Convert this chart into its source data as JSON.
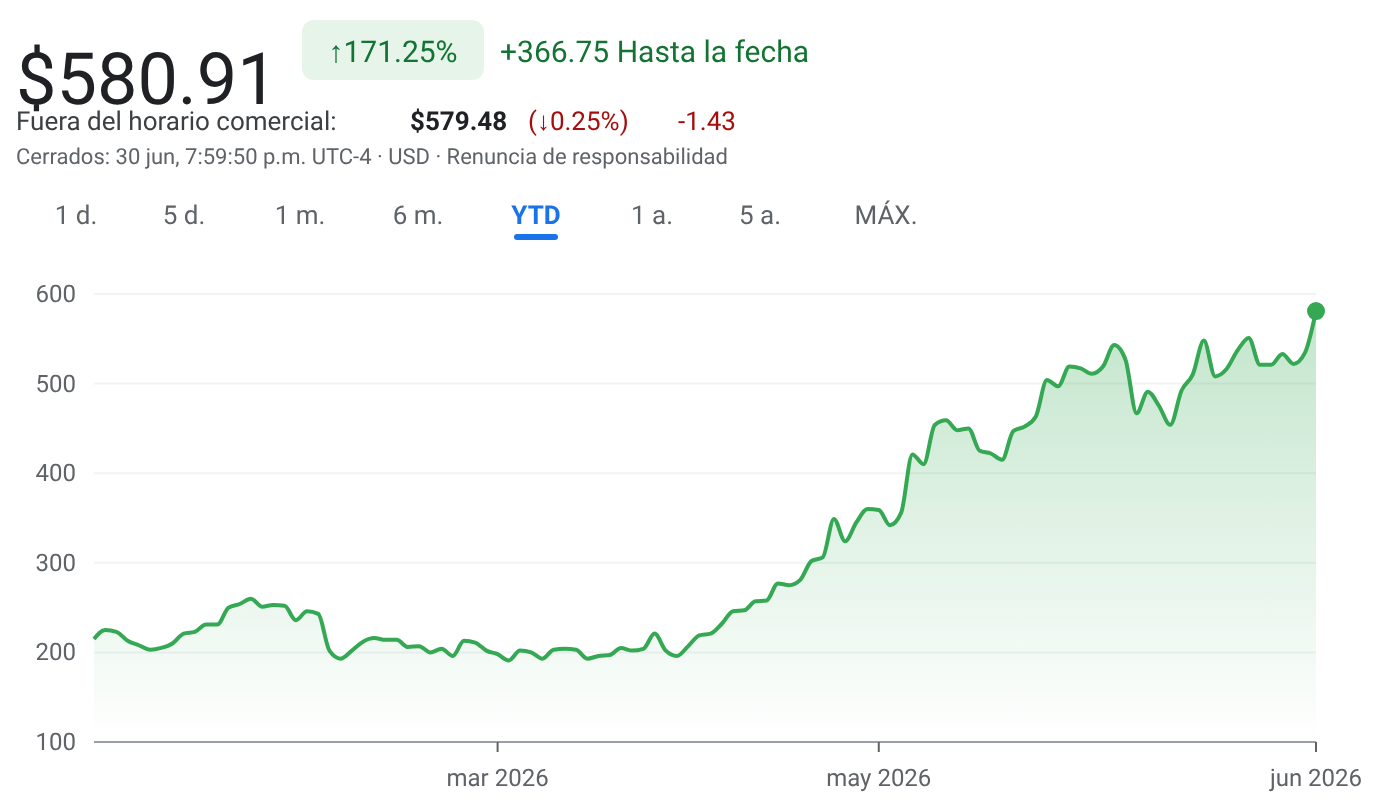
{
  "chart_data": {
    "type": "area",
    "title": "$580.91",
    "annotations": [
      "↑171.25%",
      "+366.75 Hasta la fecha",
      "Fuera del horario comercial:",
      "$579.48",
      "(↓0.25%)",
      "-1.43",
      "Cerrados: 30 jun, 7:59:50 p.m. UTC-4 · USD · Renuncia de responsabilidad",
      "1 d.",
      "5 d.",
      "1 m.",
      "6 m.",
      "YTD",
      "1 a.",
      "5 a.",
      "MÁX."
    ],
    "categories": [
      null,
      null,
      null,
      null,
      null,
      null,
      null,
      null,
      null,
      null,
      null,
      null,
      null,
      null,
      null,
      null,
      null,
      null,
      null,
      null,
      null,
      null,
      null,
      null,
      null,
      null,
      null,
      null,
      null,
      null,
      null,
      null,
      null,
      null,
      null,
      null,
      "mar 2026",
      null,
      null,
      null,
      null,
      null,
      null,
      null,
      null,
      null,
      null,
      null,
      null,
      null,
      null,
      null,
      null,
      null,
      null,
      null,
      null,
      null,
      null,
      null,
      null,
      null,
      null,
      null,
      null,
      null,
      null,
      null,
      null,
      null,
      "may 2026",
      null,
      null,
      null,
      null,
      null,
      null,
      null,
      null,
      null,
      null,
      null,
      null,
      null,
      null,
      null,
      null,
      null,
      null,
      null,
      null,
      null,
      null,
      null,
      null,
      null,
      null,
      null,
      null,
      null,
      null,
      null,
      null,
      null,
      null,
      null,
      null,
      null,
      null,
      "jun 2026"
    ],
    "series": [
      {
        "color": "#34a853",
        "values": [
          215,
          225,
          223,
          213,
          208,
          203,
          205,
          210,
          221,
          223,
          231,
          231,
          250,
          254,
          260,
          251,
          253,
          252,
          236,
          246,
          243,
          202,
          193,
          202,
          212,
          216,
          214,
          214,
          206,
          207,
          200,
          204,
          196,
          213,
          211,
          202,
          198,
          191,
          202,
          200,
          193,
          203,
          204,
          203,
          193,
          196,
          197,
          205,
          202,
          204,
          221,
          202,
          196,
          207,
          219,
          221,
          232,
          246,
          247,
          257,
          258,
          277,
          275,
          281,
          302,
          306,
          349,
          324,
          345,
          360,
          359,
          342,
          356,
          421,
          410,
          454,
          459,
          448,
          450,
          425,
          422,
          415,
          447,
          452,
          463,
          504,
          497,
          519,
          517,
          511,
          519,
          543,
          527,
          467,
          491,
          475,
          454,
          492,
          510,
          548,
          508,
          516,
          537,
          551,
          521,
          521,
          533,
          522,
          534,
          581
        ]
      }
    ],
    "ylim": [
      100,
      600
    ],
    "yticks": [
      100,
      200,
      300,
      400,
      500,
      600
    ],
    "grid": "y"
  }
}
